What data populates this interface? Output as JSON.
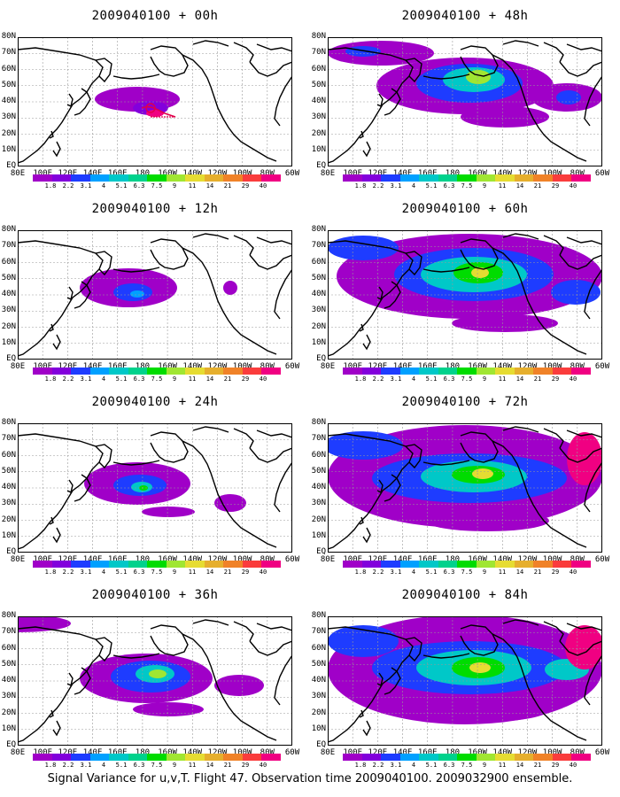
{
  "caption": "Signal Variance for u,v,T. Flight 47. Observation time 2009040100. 2009032900 ensemble.",
  "lat_labels": [
    "80N",
    "70N",
    "60N",
    "50N",
    "40N",
    "30N",
    "20N",
    "10N",
    "EQ"
  ],
  "lon_labels": [
    "80E",
    "100E",
    "120E",
    "140E",
    "160E",
    "180",
    "160W",
    "140W",
    "120W",
    "100W",
    "80W",
    "60W"
  ],
  "colorbar_levels": [
    "1.8",
    "2.2",
    "3.1",
    "4",
    "5.1",
    "6.3",
    "7.5",
    "9",
    "11",
    "14",
    "21",
    "29",
    "40"
  ],
  "colorbar_colors": [
    "#a000c8",
    "#8200dc",
    "#1e3cff",
    "#00a0ff",
    "#00c8c8",
    "#00d28c",
    "#00dc00",
    "#a0e632",
    "#e6dc32",
    "#e6af2d",
    "#f08228",
    "#fa3c3c",
    "#f00082"
  ],
  "panels": [
    {
      "title": "2009040100 + 00h",
      "lead": "00h"
    },
    {
      "title": "2009040100 + 48h",
      "lead": "48h"
    },
    {
      "title": "2009040100 + 12h",
      "lead": "12h"
    },
    {
      "title": "2009040100 + 60h",
      "lead": "60h"
    },
    {
      "title": "2009040100 + 24h",
      "lead": "24h"
    },
    {
      "title": "2009040100 + 72h",
      "lead": "72h"
    },
    {
      "title": "2009040100 + 36h",
      "lead": "36h"
    },
    {
      "title": "2009040100 + 84h",
      "lead": "84h"
    }
  ]
}
